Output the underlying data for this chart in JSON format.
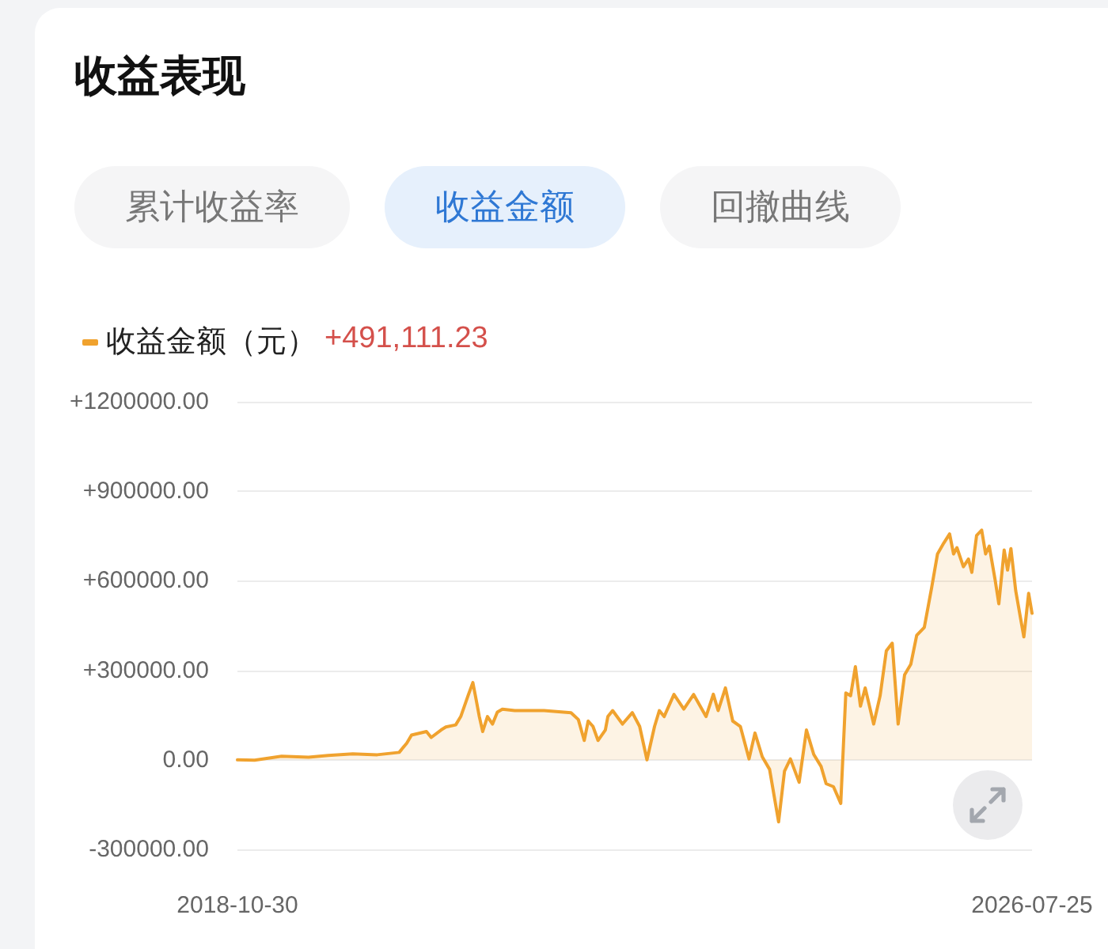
{
  "chart_data": {
    "type": "area",
    "title": "收益表现",
    "annotations": [
      "累计收益率",
      "收益金额",
      "回撤曲线",
      "+491,111.23"
    ],
    "x": [
      "2018-10-30",
      "2018-12-30",
      "2019-04-05",
      "2019-07-10",
      "2019-09-18",
      "2019-12-14",
      "2020-03-10",
      "2020-05-27",
      "2020-06-23",
      "2020-07-10",
      "2020-09-01",
      "2020-09-18",
      "2020-10-23",
      "2020-11-09",
      "2020-12-14",
      "2021-01-01",
      "2021-01-27",
      "2021-02-13",
      "2021-02-22",
      "2021-03-08",
      "2021-03-20",
      "2021-04-06",
      "2021-04-24",
      "2021-05-11",
      "2021-05-29",
      "2021-07-12",
      "2021-10-24",
      "2022-01-28",
      "2022-02-23",
      "2022-03-16",
      "2022-03-30",
      "2022-04-16",
      "2022-05-04",
      "2022-05-30",
      "2022-06-08",
      "2022-06-25",
      "2022-07-30",
      "2022-09-03",
      "2022-09-29",
      "2022-10-25",
      "2022-11-21",
      "2022-12-08",
      "2022-12-25",
      "2023-01-29",
      "2023-03-05",
      "2023-04-09",
      "2023-05-23",
      "2023-06-18",
      "2023-07-05",
      "2023-07-31",
      "2023-08-26",
      "2023-09-22",
      "2023-10-23",
      "2023-11-13",
      "2023-12-09",
      "2024-01-04",
      "2024-02-05",
      "2024-02-26",
      "2024-03-18",
      "2024-04-18",
      "2024-05-14",
      "2024-06-09",
      "2024-07-05",
      "2024-07-23",
      "2024-08-18",
      "2024-09-13",
      "2024-10-01",
      "2024-10-18",
      "2024-11-04",
      "2024-11-22",
      "2024-12-09",
      "2025-01-08",
      "2025-01-31",
      "2025-02-22",
      "2025-03-15",
      "2025-04-05",
      "2025-04-28",
      "2025-05-20",
      "2025-06-10",
      "2025-07-07",
      "2025-08-02",
      "2025-08-23",
      "2025-09-14",
      "2025-10-05",
      "2025-10-19",
      "2025-10-31",
      "2025-11-23",
      "2025-12-11",
      "2025-12-23",
      "2026-01-09",
      "2026-01-27",
      "2026-02-10",
      "2026-02-23",
      "2026-03-16",
      "2026-03-29",
      "2026-04-17",
      "2026-04-29",
      "2026-05-11",
      "2026-05-28",
      "2026-06-15",
      "2026-06-26",
      "2026-07-13",
      "2026-07-25"
    ],
    "series": [
      {
        "name": "收益金额（元）",
        "color": "#f0a22e",
        "values": [
          0,
          -1000,
          12000,
          9000,
          15000,
          20000,
          17000,
          25000,
          56000,
          83000,
          95000,
          75000,
          100000,
          110000,
          117000,
          145000,
          215000,
          259000,
          215000,
          145000,
          95000,
          145000,
          120000,
          160000,
          170000,
          165000,
          165000,
          158000,
          135000,
          65000,
          130000,
          112000,
          65000,
          100000,
          145000,
          165000,
          120000,
          158000,
          112000,
          0,
          112000,
          165000,
          145000,
          219000,
          170000,
          219000,
          145000,
          220000,
          165000,
          241000,
          130000,
          112000,
          3000,
          90000,
          10000,
          -32000,
          -208000,
          -38000,
          3000,
          -75000,
          100000,
          18000,
          -22000,
          -80000,
          -90000,
          -146000,
          224000,
          215000,
          312000,
          180000,
          241000,
          120000,
          215000,
          365000,
          391000,
          120000,
          285000,
          320000,
          417000,
          444000,
          576000,
          690000,
          726000,
          757000,
          690000,
          711000,
          647000,
          673000,
          628000,
          752000,
          770000,
          690000,
          716000,
          602000,
          523000,
          703000,
          636000,
          708000,
          567000,
          470000,
          412000,
          558000,
          491000
        ]
      }
    ],
    "xlim": [
      "2018-10-30",
      "2026-07-25"
    ],
    "xticks": [
      "2018-10-30",
      "2026-07-25"
    ],
    "ylim": [
      -300000,
      1200000
    ],
    "yticks": [
      {
        "value": -300000,
        "label": "-300000.00"
      },
      {
        "value": 0,
        "label": "0.00"
      },
      {
        "value": 300000,
        "label": "+300000.00"
      },
      {
        "value": 600000,
        "label": "+600000.00"
      },
      {
        "value": 900000,
        "label": "+900000.00"
      },
      {
        "value": 1200000,
        "label": "+1200000.00"
      }
    ],
    "grid": "y",
    "legend": "top left",
    "marker": "none"
  }
}
